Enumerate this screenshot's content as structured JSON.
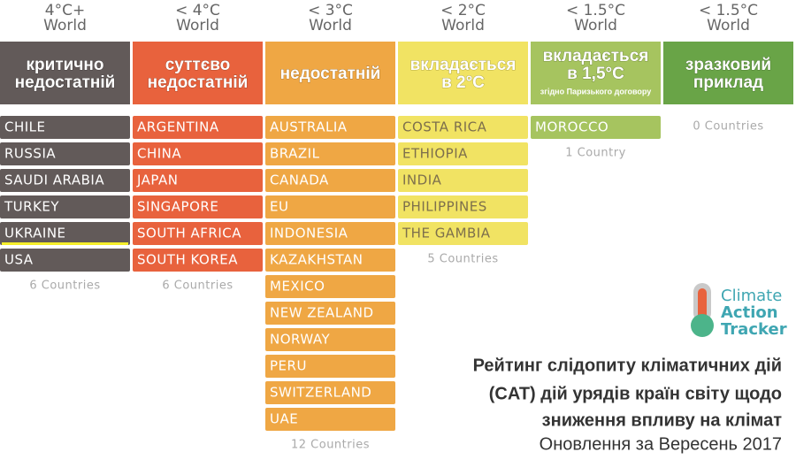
{
  "columns": [
    {
      "temp": "4°C+",
      "world": "World",
      "rating": [
        "критично",
        "недостатній"
      ],
      "countries": [
        "CHILE",
        "RUSSIA",
        "SAUDI ARABIA",
        "TURKEY",
        "UKRAINE",
        "USA"
      ],
      "count": "6 Countries",
      "color": "#625a59",
      "text_color": "#ffffff"
    },
    {
      "temp": "< 4°C",
      "world": "World",
      "rating": [
        "суттєво",
        "недостатній"
      ],
      "countries": [
        "ARGENTINA",
        "CHINA",
        "JAPAN",
        "SINGAPORE",
        "SOUTH AFRICA",
        "SOUTH KOREA"
      ],
      "count": "6 Countries",
      "color": "#e8623d",
      "text_color": "#ffffff"
    },
    {
      "temp": "< 3°C",
      "world": "World",
      "rating": [
        "недостатній"
      ],
      "countries": [
        "AUSTRALIA",
        "BRAZIL",
        "CANADA",
        "EU",
        "INDONESIA",
        "KAZAKHSTAN",
        "MEXICO",
        "NEW ZEALAND",
        "NORWAY",
        "PERU",
        "SWITZERLAND",
        "UAE"
      ],
      "count": "12 Countries",
      "color": "#efa744",
      "text_color": "#ffffff"
    },
    {
      "temp": "< 2°C",
      "world": "World",
      "rating": [
        "вкладається",
        "в 2°C"
      ],
      "countries": [
        "COSTA RICA",
        "ETHIOPIA",
        "INDIA",
        "PHILIPPINES",
        "THE GAMBIA"
      ],
      "count": "5 Countries",
      "color": "#f1e363",
      "text_color": "#7d6f4c"
    },
    {
      "temp": "< 1.5°C",
      "world": "World",
      "rating": [
        "вкладається",
        "в 1,5°C"
      ],
      "note": "згідно Паризького договору",
      "countries": [
        "MOROCCO"
      ],
      "count": "1 Country",
      "color": "#a6c45f",
      "text_color": "#ffffff"
    },
    {
      "temp": "< 1.5°C",
      "world": "World",
      "rating": [
        "зразковий",
        "приклад"
      ],
      "countries": [],
      "count": "0 Countries",
      "color": "#69a447",
      "text_color": "#ffffff"
    }
  ],
  "logo": [
    "Climate",
    "Action",
    "Tracker"
  ],
  "title": [
    "Рейтинг слідопиту кліматичних дій",
    "(CAT) дій урядів країн світу щодо",
    "зниження впливу на клімат"
  ],
  "update": "Оновлення за Вересень 2017"
}
